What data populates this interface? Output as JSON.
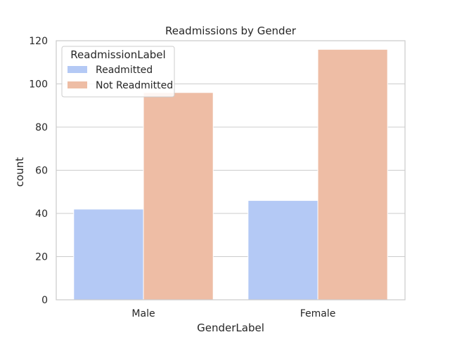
{
  "chart_data": {
    "type": "bar",
    "title": "Readmissions by Gender",
    "xlabel": "GenderLabel",
    "ylabel": "count",
    "categories": [
      "Male",
      "Female"
    ],
    "series": [
      {
        "name": "Readmitted",
        "values": [
          42,
          46
        ],
        "color": "#b4c9f5"
      },
      {
        "name": "Not Readmitted",
        "values": [
          96,
          116
        ],
        "color": "#eebda5"
      }
    ],
    "ylim": [
      0,
      120
    ],
    "yticks": [
      "0",
      "20",
      "40",
      "60",
      "80",
      "100",
      "120"
    ],
    "legend": {
      "title": "ReadmissionLabel",
      "position": "top-left"
    },
    "grid": true
  }
}
